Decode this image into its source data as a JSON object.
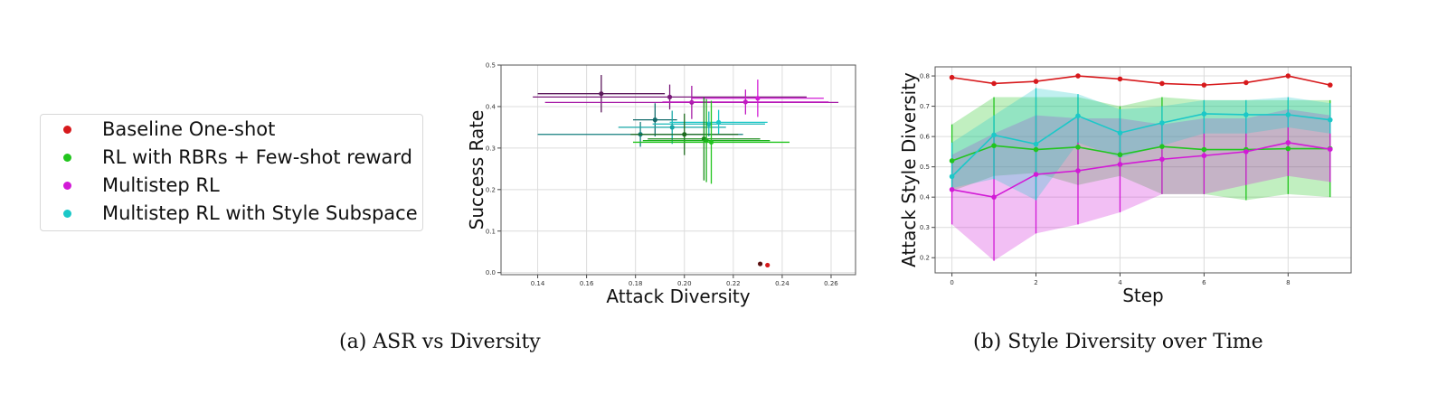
{
  "legend": [
    {
      "label": "Baseline One-shot",
      "color": "#d7191c"
    },
    {
      "label": "RL with RBRs + Few-shot reward",
      "color": "#22c51e"
    },
    {
      "label": "Multistep RL",
      "color": "#d21ad6"
    },
    {
      "label": "Multistep RL with Style Subspace",
      "color": "#1bc8c8"
    }
  ],
  "captions": {
    "a": "(a) ASR vs Diversity",
    "b": "(b) Style Diversity over Time"
  },
  "chart_data": [
    {
      "type": "scatter",
      "title": "",
      "xlabel": "Attack Diversity",
      "ylabel": "Success Rate",
      "xlim": [
        0.125,
        0.27
      ],
      "ylim": [
        -0.005,
        0.5
      ],
      "xticks": [
        "0.14",
        "0.16",
        "0.18",
        "0.20",
        "0.22",
        "0.24",
        "0.26"
      ],
      "yticks": [
        "0.0",
        "0.1",
        "0.2",
        "0.3",
        "0.4",
        "0.5"
      ],
      "grid": true,
      "points": [
        {
          "x": 0.166,
          "y": 0.431,
          "xerr": 0.026,
          "yerr": 0.045,
          "color": "#5c1a5c"
        },
        {
          "x": 0.194,
          "y": 0.423,
          "xerr": 0.056,
          "yerr": 0.03,
          "color": "#7a1a7a"
        },
        {
          "x": 0.203,
          "y": 0.41,
          "xerr": 0.06,
          "yerr": 0.04,
          "color": "#a51aa5"
        },
        {
          "x": 0.225,
          "y": 0.411,
          "xerr": 0.034,
          "yerr": 0.03,
          "color": "#c21ac2"
        },
        {
          "x": 0.23,
          "y": 0.42,
          "xerr": 0.027,
          "yerr": 0.045,
          "color": "#d21ad6"
        },
        {
          "x": 0.188,
          "y": 0.368,
          "xerr": 0.009,
          "yerr": 0.04,
          "color": "#126b6b"
        },
        {
          "x": 0.182,
          "y": 0.333,
          "xerr": 0.042,
          "yerr": 0.03,
          "color": "#127e7e"
        },
        {
          "x": 0.195,
          "y": 0.35,
          "xerr": 0.022,
          "yerr": 0.04,
          "color": "#16a6a6"
        },
        {
          "x": 0.21,
          "y": 0.358,
          "xerr": 0.023,
          "yerr": 0.03,
          "color": "#1ab8b8"
        },
        {
          "x": 0.214,
          "y": 0.362,
          "xerr": 0.02,
          "yerr": 0.03,
          "color": "#1bc8c8"
        },
        {
          "x": 0.2,
          "y": 0.333,
          "xerr": 0.022,
          "yerr": 0.05,
          "color": "#1e6b1e"
        },
        {
          "x": 0.208,
          "y": 0.322,
          "xerr": 0.023,
          "yerr": 0.1,
          "color": "#1a8a1a"
        },
        {
          "x": 0.209,
          "y": 0.318,
          "xerr": 0.026,
          "yerr": 0.1,
          "color": "#1bb21b"
        },
        {
          "x": 0.211,
          "y": 0.314,
          "xerr": 0.032,
          "yerr": 0.1,
          "color": "#22c51e"
        },
        {
          "x": 0.231,
          "y": 0.021,
          "xerr": 0,
          "yerr": 0,
          "color": "#5a1010"
        },
        {
          "x": 0.234,
          "y": 0.018,
          "xerr": 0,
          "yerr": 0,
          "color": "#d7191c"
        }
      ]
    },
    {
      "type": "line",
      "title": "",
      "xlabel": "Step",
      "ylabel": "Attack Style Diversity",
      "xlim": [
        -0.4,
        9.5
      ],
      "ylim": [
        0.15,
        0.83
      ],
      "xticks": [
        "0",
        "2",
        "4",
        "6",
        "8"
      ],
      "yticks": [
        "0.2",
        "0.3",
        "0.4",
        "0.5",
        "0.6",
        "0.7",
        "0.8"
      ],
      "grid": true,
      "x": [
        0,
        1,
        2,
        3,
        4,
        5,
        6,
        7,
        8,
        9
      ],
      "series": [
        {
          "color": "#d7191c",
          "values": [
            0.795,
            0.775,
            0.782,
            0.8,
            0.79,
            0.775,
            0.77,
            0.778,
            0.8,
            0.77
          ],
          "lower": [],
          "upper": []
        },
        {
          "color": "#22c51e",
          "values": [
            0.52,
            0.57,
            0.557,
            0.565,
            0.54,
            0.567,
            0.557,
            0.557,
            0.56,
            0.56
          ],
          "lower": [
            0.42,
            0.47,
            0.48,
            0.44,
            0.47,
            0.41,
            0.41,
            0.39,
            0.41,
            0.4
          ],
          "upper": [
            0.64,
            0.73,
            0.73,
            0.73,
            0.7,
            0.73,
            0.72,
            0.72,
            0.72,
            0.72
          ]
        },
        {
          "color": "#d21ad6",
          "values": [
            0.425,
            0.4,
            0.475,
            0.487,
            0.508,
            0.525,
            0.537,
            0.55,
            0.58,
            0.558
          ],
          "lower": [
            0.31,
            0.19,
            0.28,
            0.31,
            0.35,
            0.41,
            0.41,
            0.44,
            0.47,
            0.45
          ],
          "upper": [
            0.54,
            0.61,
            0.67,
            0.66,
            0.66,
            0.64,
            0.66,
            0.66,
            0.69,
            0.67
          ]
        },
        {
          "color": "#1bc8c8",
          "values": [
            0.468,
            0.605,
            0.575,
            0.668,
            0.612,
            0.645,
            0.675,
            0.672,
            0.672,
            0.655
          ],
          "lower": [
            0.43,
            0.46,
            0.39,
            0.58,
            0.53,
            0.57,
            0.61,
            0.61,
            0.63,
            0.61
          ],
          "upper": [
            0.58,
            0.67,
            0.76,
            0.74,
            0.69,
            0.7,
            0.72,
            0.72,
            0.73,
            0.71
          ]
        }
      ]
    }
  ]
}
